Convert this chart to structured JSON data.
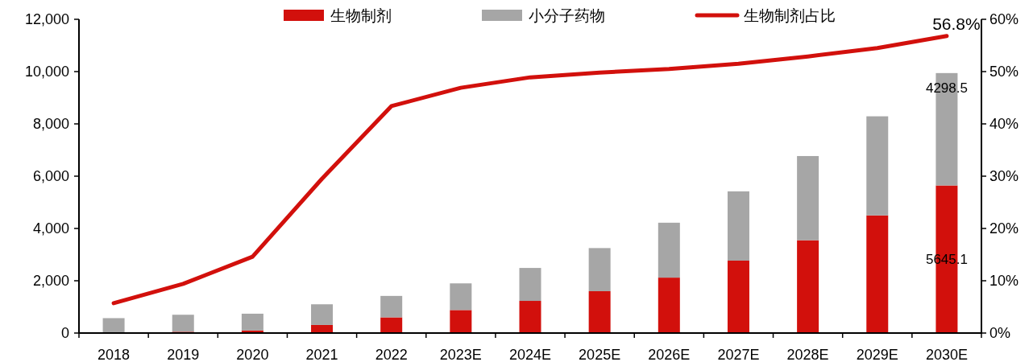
{
  "chart_data": {
    "type": "bar",
    "stacked": true,
    "categories": [
      "2018",
      "2019",
      "2020",
      "2021",
      "2022",
      "2023E",
      "2024E",
      "2025E",
      "2026E",
      "2027E",
      "2028E",
      "2029E",
      "2030E"
    ],
    "series": [
      {
        "name": "生物制剂",
        "color": "#d2100c",
        "values": [
          null,
          50,
          100,
          310,
          600,
          880,
          1230,
          1600,
          2120,
          2770,
          3550,
          4500,
          5645.1
        ],
        "value_labels": [
          null,
          null,
          null,
          null,
          null,
          null,
          null,
          null,
          null,
          null,
          null,
          null,
          "5645.1"
        ]
      },
      {
        "name": "小分子药物",
        "color": "#a6a6a6",
        "values": [
          570,
          650,
          640,
          790,
          820,
          1020,
          1260,
          1650,
          2100,
          2650,
          3220,
          3790,
          4298.5
        ],
        "value_labels": [
          null,
          null,
          null,
          null,
          null,
          null,
          null,
          null,
          null,
          null,
          null,
          null,
          "4298.5"
        ]
      },
      {
        "name": "生物制剂占比",
        "type": "line",
        "axis": "y2",
        "color": "#d2100c",
        "values": [
          5.7,
          9.4,
          14.6,
          29.5,
          43.4,
          46.9,
          48.9,
          49.8,
          50.5,
          51.5,
          52.9,
          54.5,
          56.8
        ],
        "value_labels": [
          null,
          null,
          null,
          null,
          null,
          null,
          null,
          null,
          null,
          null,
          null,
          null,
          "56.8%"
        ]
      }
    ],
    "ylim": [
      0,
      12000
    ],
    "yticks": [
      0,
      {
        "value": 2000,
        "label": "2,000"
      },
      {
        "value": 4000,
        "label": "4,000"
      },
      {
        "value": 6000,
        "label": "6,000"
      },
      {
        "value": 8000,
        "label": "8,000"
      },
      {
        "value": 10000,
        "label": "10,000"
      },
      {
        "value": 12000,
        "label": "12,000"
      }
    ],
    "y2lim": [
      0,
      60
    ],
    "y2ticks": [
      {
        "value": 0,
        "label": "0%"
      },
      {
        "value": 10,
        "label": "10%"
      },
      {
        "value": 20,
        "label": "20%"
      },
      {
        "value": 30,
        "label": "30%"
      },
      {
        "value": 40,
        "label": "40%"
      },
      {
        "value": 50,
        "label": "50%"
      },
      {
        "value": 60,
        "label": "60%"
      }
    ],
    "legend": "top",
    "grid": false,
    "marker": "none",
    "line_style": "solid"
  }
}
